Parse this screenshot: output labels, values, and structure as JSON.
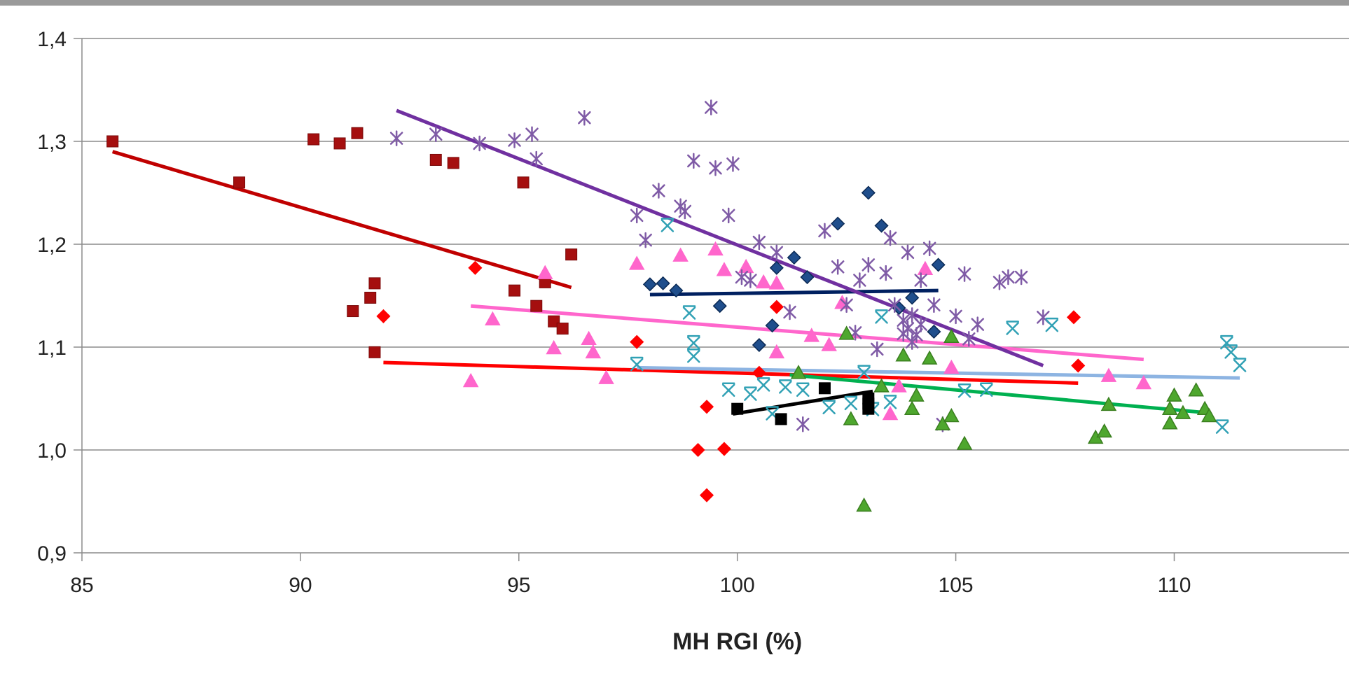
{
  "chart_data": {
    "type": "scatter",
    "title": "",
    "xlabel": "MH RGI (%)",
    "ylabel": "",
    "xlim": [
      85,
      114
    ],
    "ylim": [
      0.9,
      1.4
    ],
    "x_ticks": [
      85,
      90,
      95,
      100,
      105,
      110
    ],
    "x_tick_labels": [
      "85",
      "90",
      "95",
      "100",
      "105",
      "110"
    ],
    "y_ticks": [
      0.9,
      1.0,
      1.1,
      1.2,
      1.3,
      1.4
    ],
    "y_tick_labels": [
      "0,9",
      "1,0",
      "1,1",
      "1,2",
      "1,3",
      "1,4"
    ],
    "grid": "horizontal",
    "series": [
      {
        "marker": "square",
        "color": "#a50f0f",
        "points": [
          [
            85.7,
            1.3
          ],
          [
            88.6,
            1.26
          ],
          [
            90.3,
            1.302
          ],
          [
            90.9,
            1.298
          ],
          [
            91.3,
            1.308
          ],
          [
            93.1,
            1.282
          ],
          [
            93.5,
            1.279
          ],
          [
            95.1,
            1.26
          ],
          [
            96.2,
            1.19
          ],
          [
            94.9,
            1.155
          ],
          [
            95.4,
            1.14
          ],
          [
            95.6,
            1.163
          ],
          [
            95.8,
            1.125
          ],
          [
            96.0,
            1.118
          ],
          [
            91.2,
            1.135
          ],
          [
            91.6,
            1.148
          ],
          [
            91.7,
            1.162
          ],
          [
            91.7,
            1.095
          ]
        ],
        "trend": [
          [
            85.7,
            1.29
          ],
          [
            96.2,
            1.158
          ]
        ],
        "trend_color": "#c00000"
      },
      {
        "marker": "diamond",
        "color": "#ff0000",
        "points": [
          [
            91.9,
            1.13
          ],
          [
            94.0,
            1.177
          ],
          [
            97.7,
            1.105
          ],
          [
            99.3,
            1.042
          ],
          [
            99.1,
            1.0
          ],
          [
            99.7,
            1.001
          ],
          [
            99.3,
            0.956
          ],
          [
            100.9,
            1.139
          ],
          [
            100.5,
            1.075
          ],
          [
            107.7,
            1.129
          ],
          [
            107.8,
            1.082
          ]
        ],
        "trend": [
          [
            91.9,
            1.085
          ],
          [
            107.8,
            1.065
          ]
        ],
        "trend_color": "#ff0000"
      },
      {
        "marker": "diamond",
        "color": "#1f4e8c",
        "points": [
          [
            98.0,
            1.161
          ],
          [
            98.3,
            1.162
          ],
          [
            98.6,
            1.155
          ],
          [
            99.6,
            1.14
          ],
          [
            100.5,
            1.102
          ],
          [
            100.8,
            1.121
          ],
          [
            100.9,
            1.177
          ],
          [
            101.3,
            1.187
          ],
          [
            101.6,
            1.168
          ],
          [
            102.3,
            1.22
          ],
          [
            103.0,
            1.25
          ],
          [
            103.3,
            1.218
          ],
          [
            103.7,
            1.138
          ],
          [
            104.0,
            1.148
          ],
          [
            104.5,
            1.115
          ],
          [
            104.6,
            1.18
          ]
        ],
        "trend": [
          [
            98.0,
            1.151
          ],
          [
            104.6,
            1.155
          ]
        ],
        "trend_color": "#002060"
      },
      {
        "marker": "triangle",
        "color": "#ff66cc",
        "points": [
          [
            93.9,
            1.067
          ],
          [
            94.4,
            1.127
          ],
          [
            95.6,
            1.172
          ],
          [
            95.8,
            1.099
          ],
          [
            96.6,
            1.108
          ],
          [
            96.7,
            1.095
          ],
          [
            97.0,
            1.07
          ],
          [
            97.7,
            1.181
          ],
          [
            98.7,
            1.189
          ],
          [
            99.5,
            1.195
          ],
          [
            99.7,
            1.175
          ],
          [
            100.2,
            1.178
          ],
          [
            100.6,
            1.163
          ],
          [
            100.9,
            1.162
          ],
          [
            100.9,
            1.095
          ],
          [
            101.7,
            1.111
          ],
          [
            102.1,
            1.102
          ],
          [
            102.4,
            1.143
          ],
          [
            103.5,
            1.035
          ],
          [
            103.7,
            1.062
          ],
          [
            104.3,
            1.176
          ],
          [
            104.9,
            1.08
          ],
          [
            108.5,
            1.072
          ],
          [
            109.3,
            1.065
          ]
        ],
        "trend": [
          [
            93.9,
            1.14
          ],
          [
            109.3,
            1.088
          ]
        ],
        "trend_color": "#ff66cc"
      },
      {
        "marker": "star",
        "color": "#7f5ba6",
        "points": [
          [
            92.2,
            1.303
          ],
          [
            93.1,
            1.307
          ],
          [
            94.1,
            1.298
          ],
          [
            94.9,
            1.301
          ],
          [
            95.3,
            1.307
          ],
          [
            95.4,
            1.283
          ],
          [
            96.5,
            1.323
          ],
          [
            97.7,
            1.228
          ],
          [
            97.9,
            1.204
          ],
          [
            98.2,
            1.252
          ],
          [
            98.7,
            1.237
          ],
          [
            98.8,
            1.232
          ],
          [
            99.0,
            1.281
          ],
          [
            99.4,
            1.333
          ],
          [
            99.5,
            1.274
          ],
          [
            99.8,
            1.228
          ],
          [
            99.9,
            1.278
          ],
          [
            100.1,
            1.168
          ],
          [
            100.5,
            1.202
          ],
          [
            100.9,
            1.192
          ],
          [
            101.5,
            1.025
          ],
          [
            102.0,
            1.213
          ],
          [
            102.3,
            1.178
          ],
          [
            102.5,
            1.141
          ],
          [
            102.8,
            1.165
          ],
          [
            103.0,
            1.18
          ],
          [
            103.2,
            1.098
          ],
          [
            103.4,
            1.172
          ],
          [
            103.6,
            1.141
          ],
          [
            103.8,
            1.126
          ],
          [
            103.9,
            1.118
          ],
          [
            104.0,
            1.131
          ],
          [
            104.1,
            1.112
          ],
          [
            104.2,
            1.122
          ],
          [
            103.8,
            1.113
          ],
          [
            104.0,
            1.105
          ],
          [
            103.9,
            1.192
          ],
          [
            104.2,
            1.165
          ],
          [
            104.4,
            1.196
          ],
          [
            104.5,
            1.141
          ],
          [
            104.7,
            1.025
          ],
          [
            105.0,
            1.13
          ],
          [
            105.2,
            1.171
          ],
          [
            105.3,
            1.108
          ],
          [
            105.5,
            1.122
          ],
          [
            106.0,
            1.163
          ],
          [
            106.2,
            1.168
          ],
          [
            106.5,
            1.168
          ],
          [
            107.0,
            1.129
          ],
          [
            103.5,
            1.206
          ],
          [
            102.7,
            1.114
          ],
          [
            101.2,
            1.134
          ],
          [
            100.3,
            1.165
          ]
        ],
        "trend": [
          [
            92.2,
            1.33
          ],
          [
            107.0,
            1.082
          ]
        ],
        "trend_color": "#7030a0"
      },
      {
        "marker": "star",
        "color": "#31a1b5",
        "points": [
          [
            97.7,
            1.083
          ],
          [
            98.4,
            1.218
          ],
          [
            98.9,
            1.133
          ],
          [
            99.0,
            1.104
          ],
          [
            99.0,
            1.091
          ],
          [
            99.8,
            1.058
          ],
          [
            100.3,
            1.054
          ],
          [
            100.6,
            1.063
          ],
          [
            100.8,
            1.035
          ],
          [
            101.1,
            1.061
          ],
          [
            101.5,
            1.058
          ],
          [
            102.1,
            1.041
          ],
          [
            102.6,
            1.045
          ],
          [
            102.9,
            1.075
          ],
          [
            103.1,
            1.039
          ],
          [
            103.3,
            1.129
          ],
          [
            103.5,
            1.046
          ],
          [
            105.2,
            1.057
          ],
          [
            105.7,
            1.058
          ],
          [
            106.3,
            1.118
          ],
          [
            107.2,
            1.121
          ],
          [
            111.1,
            1.022
          ],
          [
            111.2,
            1.104
          ],
          [
            111.3,
            1.095
          ],
          [
            111.5,
            1.082
          ]
        ],
        "trend": [
          [
            97.7,
            1.08
          ],
          [
            111.5,
            1.07
          ]
        ],
        "trend_color": "#8db4e2"
      },
      {
        "marker": "triangle",
        "color": "#4ea72e",
        "points": [
          [
            101.4,
            1.075
          ],
          [
            102.5,
            1.113
          ],
          [
            102.6,
            1.03
          ],
          [
            102.9,
            0.946
          ],
          [
            103.3,
            1.062
          ],
          [
            103.8,
            1.092
          ],
          [
            104.0,
            1.04
          ],
          [
            104.1,
            1.053
          ],
          [
            104.4,
            1.089
          ],
          [
            104.7,
            1.025
          ],
          [
            104.9,
            1.033
          ],
          [
            104.9,
            1.11
          ],
          [
            105.2,
            1.006
          ],
          [
            108.2,
            1.012
          ],
          [
            108.4,
            1.018
          ],
          [
            108.5,
            1.044
          ],
          [
            109.9,
            1.04
          ],
          [
            109.9,
            1.026
          ],
          [
            110.0,
            1.053
          ],
          [
            110.2,
            1.036
          ],
          [
            110.5,
            1.058
          ],
          [
            110.7,
            1.04
          ],
          [
            110.8,
            1.033
          ]
        ],
        "trend": [
          [
            101.2,
            1.073
          ],
          [
            110.8,
            1.036
          ]
        ],
        "trend_color": "#00b050"
      },
      {
        "marker": "square",
        "color": "#000000",
        "points": [
          [
            100.0,
            1.04
          ],
          [
            101.0,
            1.03
          ],
          [
            102.0,
            1.06
          ],
          [
            103.0,
            1.045
          ],
          [
            103.0,
            1.04
          ],
          [
            103.0,
            1.05
          ]
        ],
        "trend": [
          [
            99.9,
            1.035
          ],
          [
            103.1,
            1.057
          ]
        ],
        "trend_color": "#000000"
      }
    ]
  }
}
